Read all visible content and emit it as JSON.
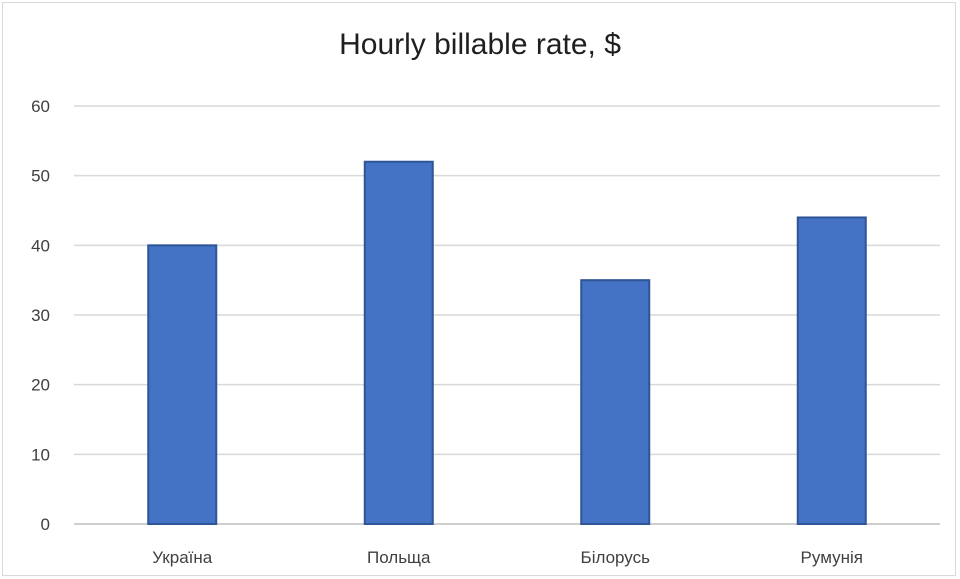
{
  "chart_data": {
    "type": "bar",
    "title": "Hourly billable rate, $",
    "categories": [
      "Україна",
      "Польща",
      "Білорусь",
      "Румунія"
    ],
    "values": [
      40,
      52,
      35,
      44
    ],
    "ylim": [
      0,
      60
    ],
    "yticks": [
      "0",
      "10",
      "20",
      "30",
      "40",
      "50",
      "60"
    ],
    "grid": true,
    "legend": "none",
    "colors": {
      "bar": "#4472c4",
      "bar_stroke": "#2f5597",
      "grid": "#d9d9d9"
    }
  }
}
